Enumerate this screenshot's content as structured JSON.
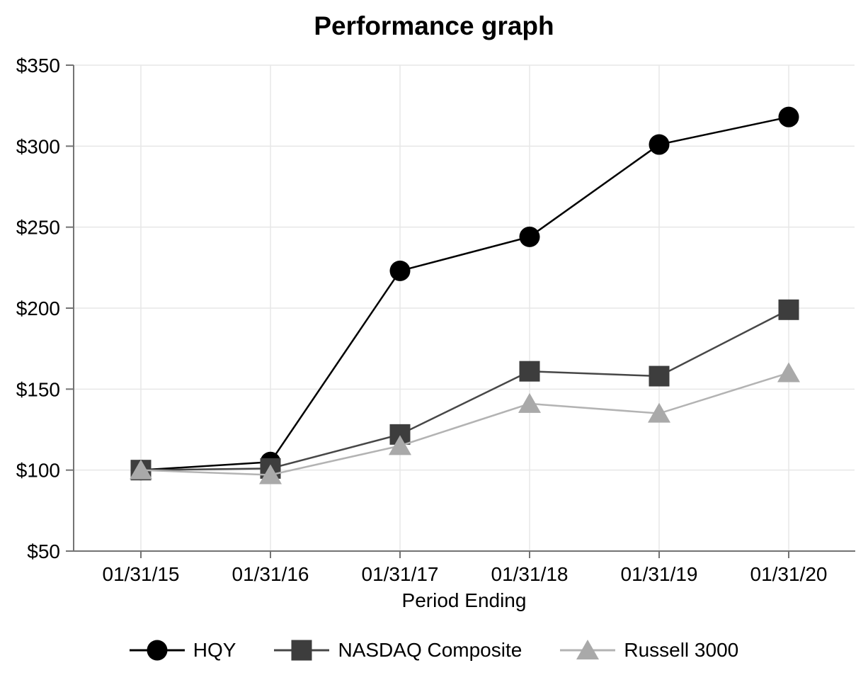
{
  "chart_data": {
    "type": "line",
    "title": "Performance graph",
    "xlabel": "Period Ending",
    "ylabel": "",
    "categories": [
      "01/31/15",
      "01/31/16",
      "01/31/17",
      "01/31/18",
      "01/31/19",
      "01/31/20"
    ],
    "series": [
      {
        "name": "HQY",
        "marker": "circle",
        "color": "#000000",
        "line_color": "#000000",
        "values": [
          100,
          105,
          223,
          244,
          301,
          318
        ]
      },
      {
        "name": "NASDAQ Composite",
        "marker": "square",
        "color": "#3d3d3d",
        "line_color": "#474747",
        "values": [
          100,
          101,
          122,
          161,
          158,
          199
        ]
      },
      {
        "name": "Russell 3000",
        "marker": "triangle",
        "color": "#a9a9a9",
        "line_color": "#b3b3b3",
        "values": [
          100,
          97,
          115,
          141,
          135,
          160
        ]
      }
    ],
    "ylim": [
      50,
      350
    ],
    "y_tick_step": 50,
    "y_ticks": [
      "$50",
      "$100",
      "$150",
      "$200",
      "$250",
      "$300",
      "$350"
    ],
    "grid": true,
    "legend_position": "bottom",
    "colors": {
      "gridline": "#e7e7e7",
      "axis": "#737373",
      "text": "#000000"
    }
  }
}
